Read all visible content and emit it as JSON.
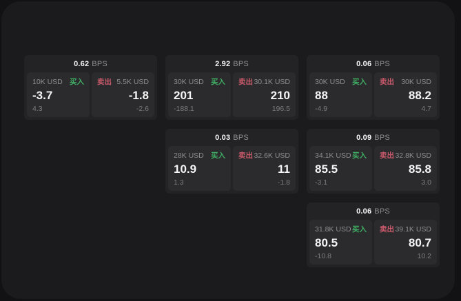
{
  "colors": {
    "page_bg": "#121214",
    "container_bg": "#1b1b1d",
    "card_bg": "#232325",
    "panel_bg": "#2b2b2d",
    "text_primary": "#f5f5f5",
    "text_secondary": "#8e8e93",
    "text_tertiary": "#7b7b80",
    "buy_green": "#3fae63",
    "sell_red": "#c95a6b"
  },
  "labels": {
    "bps_unit": "BPS",
    "buy": "买入",
    "sell": "卖出"
  },
  "cards": [
    {
      "col": 1,
      "row": 1,
      "bps": "0.62",
      "buy": {
        "size": "10K USD",
        "value": "-3.7",
        "delta": "4.3"
      },
      "sell": {
        "size": "5.5K USD",
        "value": "-1.8",
        "delta": "-2.6"
      }
    },
    {
      "col": 2,
      "row": 1,
      "bps": "2.92",
      "buy": {
        "size": "30K USD",
        "value": "201",
        "delta": "-188.1"
      },
      "sell": {
        "size": "30.1K USD",
        "value": "210",
        "delta": "196.5"
      }
    },
    {
      "col": 3,
      "row": 1,
      "bps": "0.06",
      "buy": {
        "size": "30K USD",
        "value": "88",
        "delta": "-4.9"
      },
      "sell": {
        "size": "30K USD",
        "value": "88.2",
        "delta": "4.7"
      }
    },
    {
      "col": 2,
      "row": 2,
      "bps": "0.03",
      "buy": {
        "size": "28K USD",
        "value": "10.9",
        "delta": "1.3"
      },
      "sell": {
        "size": "32.6K USD",
        "value": "11",
        "delta": "-1.8"
      }
    },
    {
      "col": 3,
      "row": 2,
      "bps": "0.09",
      "buy": {
        "size": "34.1K USD",
        "value": "85.5",
        "delta": "-3.1"
      },
      "sell": {
        "size": "32.8K USD",
        "value": "85.8",
        "delta": "3.0"
      }
    },
    {
      "col": 3,
      "row": 3,
      "bps": "0.06",
      "buy": {
        "size": "31.8K USD",
        "value": "80.5",
        "delta": "-10.8"
      },
      "sell": {
        "size": "39.1K USD",
        "value": "80.7",
        "delta": "10.2"
      }
    }
  ]
}
